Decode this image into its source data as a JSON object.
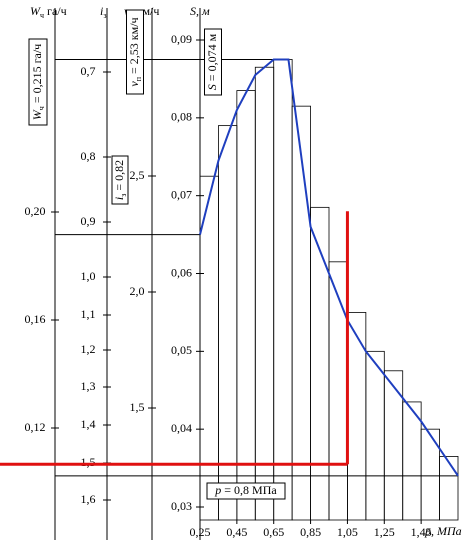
{
  "chart_data": {
    "type": "line",
    "x_label": "p, МПа",
    "y_label": "S, м",
    "x": [
      0.25,
      0.35,
      0.45,
      0.55,
      0.65,
      0.73,
      0.85,
      0.95,
      1.05,
      1.15,
      1.25,
      1.35,
      1.45,
      1.55,
      1.65
    ],
    "series": [
      {
        "color": "#1f3fbf",
        "values": [
          0.065,
          0.0745,
          0.081,
          0.0855,
          0.0875,
          0.0875,
          0.066,
          0.06,
          0.054,
          0.05,
          0.047,
          0.044,
          0.041,
          0.0375,
          0.034
        ]
      }
    ],
    "histogram": {
      "bins": [
        0.25,
        0.35,
        0.45,
        0.55,
        0.65,
        0.75,
        0.85,
        0.95,
        1.05,
        1.15,
        1.25,
        1.35,
        1.45,
        1.55,
        1.65
      ],
      "values": [
        0.0725,
        0.079,
        0.0835,
        0.0865,
        0.0875,
        0.0815,
        0.0685,
        0.0615,
        0.055,
        0.05,
        0.0475,
        0.0435,
        0.04,
        0.0365
      ]
    },
    "marker": {
      "color": "#e01010",
      "x": 1.05,
      "y": [
        0.0355,
        0.068
      ]
    },
    "xlim": [
      0.25,
      1.65
    ],
    "ylim": [
      0.03,
      0.09
    ],
    "xticks": [
      {
        "value": 0.25,
        "label": "0,25"
      },
      {
        "value": 0.45,
        "label": "0,45"
      },
      {
        "value": 0.65,
        "label": "0,65"
      },
      {
        "value": 0.85,
        "label": "0,85"
      },
      {
        "value": 1.05,
        "label": "1,05"
      },
      {
        "value": 1.25,
        "label": "1,25"
      },
      {
        "value": 1.45,
        "label": "1,45"
      }
    ],
    "yticks": [
      {
        "value": 0.03,
        "label": "0,03"
      },
      {
        "value": 0.04,
        "label": "0,04"
      },
      {
        "value": 0.05,
        "label": "0,05"
      },
      {
        "value": 0.06,
        "label": "0,06"
      },
      {
        "value": 0.07,
        "label": "0,07"
      },
      {
        "value": 0.08,
        "label": "0,08"
      },
      {
        "value": 0.09,
        "label": "0,09"
      }
    ],
    "w_axis": {
      "symbol": "W",
      "sub": "ч",
      "unit": " га/ч",
      "ticks": [
        {
          "value": 0.12,
          "label": "0,12"
        },
        {
          "value": 0.16,
          "label": "0,16"
        },
        {
          "value": 0.2,
          "label": "0,20"
        }
      ]
    },
    "i_axis": {
      "symbol": "i",
      "sub": "з",
      "ticks": [
        {
          "value": 0.7,
          "label": "0,7"
        },
        {
          "value": 0.8,
          "label": "0,8"
        },
        {
          "value": 0.9,
          "label": "0,9"
        },
        {
          "value": 1.0,
          "label": "1,0"
        },
        {
          "value": 1.1,
          "label": "1,1"
        },
        {
          "value": 1.2,
          "label": "1,2"
        },
        {
          "value": 1.3,
          "label": "1,3"
        },
        {
          "value": 1.4,
          "label": "1,4"
        },
        {
          "value": 1.5,
          "label": "1,5"
        },
        {
          "value": 1.6,
          "label": "1,6"
        }
      ]
    },
    "v_axis": {
      "symbol": "v",
      "sub": "п",
      "unit": " км/ч",
      "ticks": [
        {
          "value": 1.5,
          "label": "1,5"
        },
        {
          "value": 2.0,
          "label": "2,0"
        },
        {
          "value": 2.5,
          "label": "2,5"
        }
      ]
    },
    "annotations": [
      {
        "symbol": "W",
        "sub": "ч",
        "text": " = 0,215 га/ч"
      },
      {
        "symbol": "i",
        "sub": "з",
        "text": " = 0,82"
      },
      {
        "symbol": "v",
        "sub": "п",
        "text": " = 2,53 км/ч"
      },
      {
        "symbol": "S",
        "sub": "",
        "text": " = 0,074 м"
      },
      {
        "symbol": "p",
        "sub": "",
        "text": " = 0,8 МПа"
      }
    ]
  }
}
